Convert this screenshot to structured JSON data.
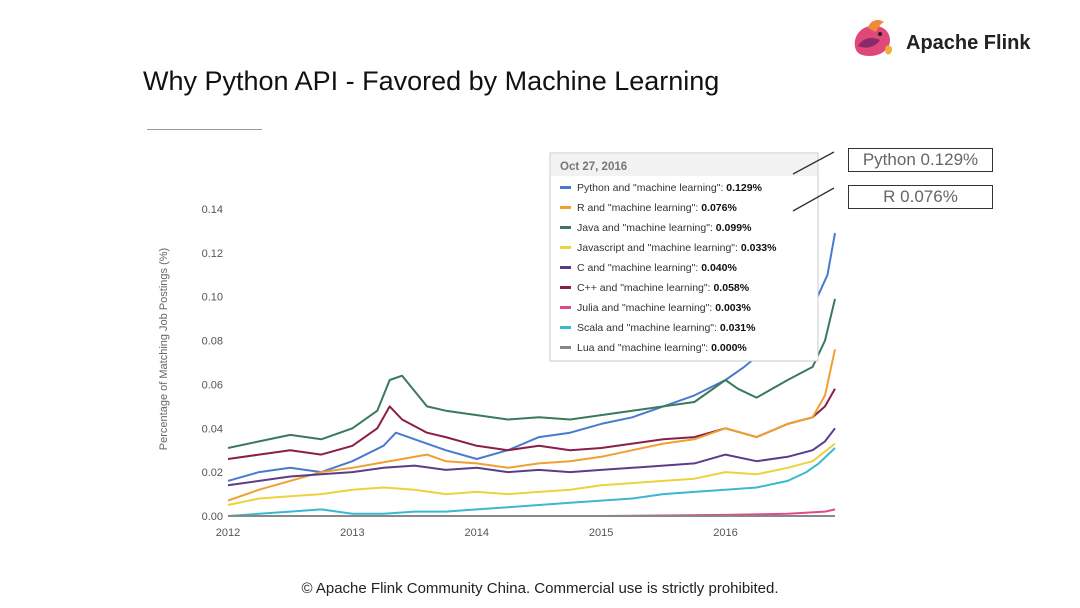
{
  "slide": {
    "title": "Why Python API - Favored by Machine Learning",
    "logo_text": "Apache Flink",
    "logo_icon": "squirrel-logo-icon",
    "footer": "© Apache Flink Community China. Commercial use is strictly prohibited."
  },
  "annotations": [
    "Python 0.129%",
    "R 0.076%"
  ],
  "chart_data": {
    "type": "line",
    "title": "",
    "xlabel": "",
    "ylabel": "Percentage of Matching Job Postings (%)",
    "xlim": [
      2012.0,
      2016.88
    ],
    "ylim": [
      0,
      0.14
    ],
    "x_ticks": [
      "2012",
      "2013",
      "2014",
      "2015",
      "2016"
    ],
    "y_ticks": [
      "0.14",
      "0.12",
      "0.10",
      "0.08",
      "0.06",
      "0.04",
      "0.02",
      "0.00"
    ],
    "y_tick_values": [
      0.14,
      0.12,
      0.1,
      0.08,
      0.06,
      0.04,
      0.02,
      0.0
    ],
    "grid": false,
    "tooltip": {
      "date": "Oct 27, 2016",
      "entries": [
        {
          "label": "Python and \"machine learning\":",
          "value": "0.129%",
          "color": "#4a7ad0"
        },
        {
          "label": "R and \"machine learning\":",
          "value": "0.076%",
          "color": "#f0a030"
        },
        {
          "label": "Java and \"machine learning\":",
          "value": "0.099%",
          "color": "#3a7a5a"
        },
        {
          "label": "Javascript and \"machine learning\":",
          "value": "0.033%",
          "color": "#ecd23c"
        },
        {
          "label": "C and \"machine learning\":",
          "value": "0.040%",
          "color": "#5a3d8a"
        },
        {
          "label": "C++ and \"machine learning\":",
          "value": "0.058%",
          "color": "#8a1e4a"
        },
        {
          "label": "Julia and \"machine learning\":",
          "value": "0.003%",
          "color": "#e04a8a"
        },
        {
          "label": "Scala and \"machine learning\":",
          "value": "0.031%",
          "color": "#3ab8d0"
        },
        {
          "label": "Lua and \"machine learning\":",
          "value": "0.000%",
          "color": "#888888"
        }
      ]
    },
    "series": [
      {
        "color": "#4a7ad0",
        "x": [
          2012.0,
          2012.25,
          2012.5,
          2012.75,
          2013.0,
          2013.25,
          2013.35,
          2013.5,
          2013.75,
          2014.0,
          2014.25,
          2014.5,
          2014.75,
          2015.0,
          2015.25,
          2015.5,
          2015.75,
          2016.0,
          2016.15,
          2016.3,
          2016.5,
          2016.7,
          2016.82,
          2016.88
        ],
        "y": [
          0.016,
          0.02,
          0.022,
          0.02,
          0.025,
          0.032,
          0.038,
          0.035,
          0.03,
          0.026,
          0.03,
          0.036,
          0.038,
          0.042,
          0.045,
          0.05,
          0.055,
          0.062,
          0.068,
          0.075,
          0.085,
          0.095,
          0.11,
          0.129
        ]
      },
      {
        "color": "#3a7a5a",
        "x": [
          2012.0,
          2012.25,
          2012.5,
          2012.75,
          2013.0,
          2013.2,
          2013.3,
          2013.4,
          2013.6,
          2013.75,
          2014.0,
          2014.25,
          2014.5,
          2014.75,
          2015.0,
          2015.25,
          2015.5,
          2015.75,
          2016.0,
          2016.1,
          2016.25,
          2016.5,
          2016.7,
          2016.8,
          2016.88
        ],
        "y": [
          0.031,
          0.034,
          0.037,
          0.035,
          0.04,
          0.048,
          0.062,
          0.064,
          0.05,
          0.048,
          0.046,
          0.044,
          0.045,
          0.044,
          0.046,
          0.048,
          0.05,
          0.052,
          0.062,
          0.058,
          0.054,
          0.062,
          0.068,
          0.08,
          0.099
        ]
      },
      {
        "color": "#8a1e4a",
        "x": [
          2012.0,
          2012.25,
          2012.5,
          2012.75,
          2013.0,
          2013.2,
          2013.3,
          2013.4,
          2013.6,
          2013.75,
          2014.0,
          2014.25,
          2014.5,
          2014.75,
          2015.0,
          2015.25,
          2015.5,
          2015.75,
          2016.0,
          2016.25,
          2016.5,
          2016.7,
          2016.8,
          2016.88
        ],
        "y": [
          0.026,
          0.028,
          0.03,
          0.028,
          0.032,
          0.04,
          0.05,
          0.044,
          0.038,
          0.036,
          0.032,
          0.03,
          0.032,
          0.03,
          0.031,
          0.033,
          0.035,
          0.036,
          0.04,
          0.036,
          0.042,
          0.045,
          0.05,
          0.058
        ]
      },
      {
        "color": "#f0a030",
        "x": [
          2012.0,
          2012.25,
          2012.5,
          2012.75,
          2013.0,
          2013.2,
          2013.4,
          2013.6,
          2013.75,
          2014.0,
          2014.25,
          2014.5,
          2014.75,
          2015.0,
          2015.25,
          2015.5,
          2015.75,
          2016.0,
          2016.25,
          2016.5,
          2016.7,
          2016.8,
          2016.88
        ],
        "y": [
          0.007,
          0.012,
          0.016,
          0.02,
          0.022,
          0.024,
          0.026,
          0.028,
          0.025,
          0.024,
          0.022,
          0.024,
          0.025,
          0.027,
          0.03,
          0.033,
          0.035,
          0.04,
          0.036,
          0.042,
          0.045,
          0.055,
          0.076
        ]
      },
      {
        "color": "#5a3d8a",
        "x": [
          2012.0,
          2012.25,
          2012.5,
          2012.75,
          2013.0,
          2013.25,
          2013.5,
          2013.75,
          2014.0,
          2014.25,
          2014.5,
          2014.75,
          2015.0,
          2015.25,
          2015.5,
          2015.75,
          2016.0,
          2016.25,
          2016.5,
          2016.7,
          2016.8,
          2016.88
        ],
        "y": [
          0.014,
          0.016,
          0.018,
          0.019,
          0.02,
          0.022,
          0.023,
          0.021,
          0.022,
          0.02,
          0.021,
          0.02,
          0.021,
          0.022,
          0.023,
          0.024,
          0.028,
          0.025,
          0.027,
          0.03,
          0.034,
          0.04
        ]
      },
      {
        "color": "#ecd23c",
        "x": [
          2012.0,
          2012.25,
          2012.5,
          2012.75,
          2013.0,
          2013.25,
          2013.5,
          2013.75,
          2014.0,
          2014.25,
          2014.5,
          2014.75,
          2015.0,
          2015.25,
          2015.5,
          2015.75,
          2016.0,
          2016.25,
          2016.5,
          2016.7,
          2016.88
        ],
        "y": [
          0.005,
          0.008,
          0.009,
          0.01,
          0.012,
          0.013,
          0.012,
          0.01,
          0.011,
          0.01,
          0.011,
          0.012,
          0.014,
          0.015,
          0.016,
          0.017,
          0.02,
          0.019,
          0.022,
          0.025,
          0.033
        ]
      },
      {
        "color": "#3ab8d0",
        "x": [
          2012.0,
          2012.25,
          2012.5,
          2012.75,
          2013.0,
          2013.25,
          2013.5,
          2013.75,
          2014.0,
          2014.25,
          2014.5,
          2014.75,
          2015.0,
          2015.25,
          2015.5,
          2015.75,
          2016.0,
          2016.25,
          2016.5,
          2016.65,
          2016.75,
          2016.88
        ],
        "y": [
          0.0,
          0.001,
          0.002,
          0.003,
          0.001,
          0.001,
          0.002,
          0.002,
          0.003,
          0.004,
          0.005,
          0.006,
          0.007,
          0.008,
          0.01,
          0.011,
          0.012,
          0.013,
          0.016,
          0.02,
          0.024,
          0.031
        ]
      },
      {
        "color": "#e04a8a",
        "x": [
          2012.0,
          2013.0,
          2014.0,
          2015.0,
          2016.0,
          2016.5,
          2016.8,
          2016.88
        ],
        "y": [
          0.0,
          0.0,
          0.0,
          0.0,
          0.0005,
          0.001,
          0.002,
          0.003
        ]
      },
      {
        "color": "#888888",
        "x": [
          2012.0,
          2013.0,
          2014.0,
          2015.0,
          2016.0,
          2016.88
        ],
        "y": [
          0.0,
          0.0,
          0.0,
          0.0,
          0.0,
          0.0
        ]
      }
    ]
  }
}
